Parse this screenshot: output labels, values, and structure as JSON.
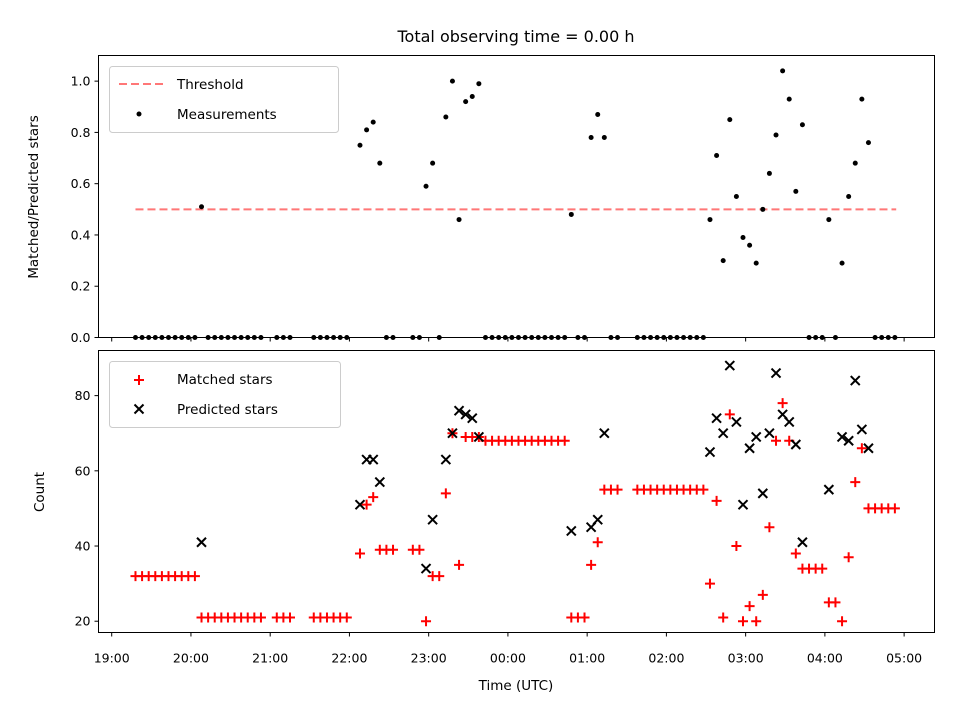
{
  "chart_data": [
    {
      "type": "scatter",
      "title": "Total observing time = 0.00 h",
      "xlabel": "",
      "ylabel": "Matched/Predicted stars",
      "ylim": [
        0,
        1.1
      ],
      "yticks": [
        "0.0",
        "0.2",
        "0.4",
        "0.6",
        "0.8",
        "1.0"
      ],
      "ytick_values": [
        0,
        0.2,
        0.4,
        0.6,
        0.8,
        1.0
      ],
      "legend_location": "upper left",
      "threshold": {
        "name": "Threshold",
        "value": 0.5,
        "x_range": [
          "19:18",
          "04:54"
        ],
        "color": "#ff7777",
        "style": "dashed"
      },
      "series": [
        {
          "name": "Measurements",
          "color": "#000000",
          "marker": "dot",
          "points": [
            [
              "19:18",
              0
            ],
            [
              "19:23",
              0
            ],
            [
              "19:28",
              0
            ],
            [
              "19:33",
              0
            ],
            [
              "19:38",
              0
            ],
            [
              "19:43",
              0
            ],
            [
              "19:48",
              0
            ],
            [
              "19:53",
              0
            ],
            [
              "19:58",
              0
            ],
            [
              "20:03",
              0
            ],
            [
              "20:08",
              0.51
            ],
            [
              "20:13",
              0
            ],
            [
              "20:18",
              0
            ],
            [
              "20:23",
              0
            ],
            [
              "20:28",
              0
            ],
            [
              "20:33",
              0
            ],
            [
              "20:38",
              0
            ],
            [
              "20:43",
              0
            ],
            [
              "20:48",
              0
            ],
            [
              "20:53",
              0
            ],
            [
              "21:05",
              0
            ],
            [
              "21:10",
              0
            ],
            [
              "21:15",
              0
            ],
            [
              "21:33",
              0
            ],
            [
              "21:38",
              0
            ],
            [
              "21:43",
              0
            ],
            [
              "21:48",
              0
            ],
            [
              "21:53",
              0
            ],
            [
              "21:58",
              0
            ],
            [
              "22:08",
              0.75
            ],
            [
              "22:13",
              0.81
            ],
            [
              "22:18",
              0.84
            ],
            [
              "22:23",
              0.68
            ],
            [
              "22:28",
              0
            ],
            [
              "22:33",
              0
            ],
            [
              "22:48",
              0
            ],
            [
              "22:53",
              0
            ],
            [
              "22:58",
              0.59
            ],
            [
              "23:03",
              0.68
            ],
            [
              "23:08",
              0
            ],
            [
              "23:13",
              0.86
            ],
            [
              "23:18",
              1.0
            ],
            [
              "23:23",
              0.46
            ],
            [
              "23:28",
              0.92
            ],
            [
              "23:33",
              0.94
            ],
            [
              "23:38",
              0.99
            ],
            [
              "23:43",
              0
            ],
            [
              "23:48",
              0
            ],
            [
              "23:53",
              0
            ],
            [
              "23:58",
              0
            ],
            [
              "00:03",
              0
            ],
            [
              "00:08",
              0
            ],
            [
              "00:13",
              0
            ],
            [
              "00:18",
              0
            ],
            [
              "00:23",
              0
            ],
            [
              "00:28",
              0
            ],
            [
              "00:33",
              0
            ],
            [
              "00:38",
              0
            ],
            [
              "00:43",
              0
            ],
            [
              "00:48",
              0.48
            ],
            [
              "00:53",
              0
            ],
            [
              "00:58",
              0
            ],
            [
              "01:03",
              0.78
            ],
            [
              "01:08",
              0.87
            ],
            [
              "01:13",
              0.78
            ],
            [
              "01:18",
              0
            ],
            [
              "01:23",
              0
            ],
            [
              "01:38",
              0
            ],
            [
              "01:43",
              0
            ],
            [
              "01:48",
              0
            ],
            [
              "01:53",
              0
            ],
            [
              "01:58",
              0
            ],
            [
              "02:03",
              0
            ],
            [
              "02:08",
              0
            ],
            [
              "02:13",
              0
            ],
            [
              "02:18",
              0
            ],
            [
              "02:23",
              0
            ],
            [
              "02:28",
              0
            ],
            [
              "02:33",
              0.46
            ],
            [
              "02:38",
              0.71
            ],
            [
              "02:43",
              0.3
            ],
            [
              "02:48",
              0.85
            ],
            [
              "02:53",
              0.55
            ],
            [
              "02:58",
              0.39
            ],
            [
              "03:03",
              0.36
            ],
            [
              "03:08",
              0.29
            ],
            [
              "03:13",
              0.5
            ],
            [
              "03:18",
              0.64
            ],
            [
              "03:23",
              0.79
            ],
            [
              "03:28",
              1.04
            ],
            [
              "03:33",
              0.93
            ],
            [
              "03:38",
              0.57
            ],
            [
              "03:43",
              0.83
            ],
            [
              "03:48",
              0
            ],
            [
              "03:53",
              0
            ],
            [
              "03:58",
              0
            ],
            [
              "04:03",
              0.46
            ],
            [
              "04:08",
              0
            ],
            [
              "04:13",
              0.29
            ],
            [
              "04:18",
              0.55
            ],
            [
              "04:23",
              0.68
            ],
            [
              "04:28",
              0.93
            ],
            [
              "04:33",
              0.76
            ],
            [
              "04:38",
              0
            ],
            [
              "04:43",
              0
            ],
            [
              "04:48",
              0
            ],
            [
              "04:53",
              0
            ]
          ]
        }
      ]
    },
    {
      "type": "scatter",
      "title": "",
      "xlabel": "Time (UTC)",
      "ylabel": "Count",
      "ylim": [
        17,
        92
      ],
      "yticks": [
        "20",
        "40",
        "60",
        "80"
      ],
      "ytick_values": [
        20,
        40,
        60,
        80
      ],
      "xticks": [
        "19:00",
        "20:00",
        "21:00",
        "22:00",
        "23:00",
        "00:00",
        "01:00",
        "02:00",
        "03:00",
        "04:00",
        "05:00"
      ],
      "xlim": [
        "18:50",
        "05:23"
      ],
      "legend_location": "upper left",
      "series": [
        {
          "name": "Matched stars",
          "color": "#ff0000",
          "marker": "plus",
          "points": [
            [
              "19:18",
              32
            ],
            [
              "19:23",
              32
            ],
            [
              "19:28",
              32
            ],
            [
              "19:33",
              32
            ],
            [
              "19:38",
              32
            ],
            [
              "19:43",
              32
            ],
            [
              "19:48",
              32
            ],
            [
              "19:53",
              32
            ],
            [
              "19:58",
              32
            ],
            [
              "20:03",
              32
            ],
            [
              "20:08",
              21
            ],
            [
              "20:13",
              21
            ],
            [
              "20:18",
              21
            ],
            [
              "20:23",
              21
            ],
            [
              "20:28",
              21
            ],
            [
              "20:33",
              21
            ],
            [
              "20:38",
              21
            ],
            [
              "20:43",
              21
            ],
            [
              "20:48",
              21
            ],
            [
              "20:53",
              21
            ],
            [
              "21:05",
              21
            ],
            [
              "21:10",
              21
            ],
            [
              "21:15",
              21
            ],
            [
              "21:33",
              21
            ],
            [
              "21:38",
              21
            ],
            [
              "21:43",
              21
            ],
            [
              "21:48",
              21
            ],
            [
              "21:53",
              21
            ],
            [
              "21:58",
              21
            ],
            [
              "22:08",
              38
            ],
            [
              "22:13",
              51
            ],
            [
              "22:18",
              53
            ],
            [
              "22:23",
              39
            ],
            [
              "22:28",
              39
            ],
            [
              "22:33",
              39
            ],
            [
              "22:48",
              39
            ],
            [
              "22:53",
              39
            ],
            [
              "22:58",
              20
            ],
            [
              "23:03",
              32
            ],
            [
              "23:08",
              32
            ],
            [
              "23:13",
              54
            ],
            [
              "23:18",
              70
            ],
            [
              "23:23",
              35
            ],
            [
              "23:28",
              69
            ],
            [
              "23:33",
              69
            ],
            [
              "23:38",
              69
            ],
            [
              "23:43",
              68
            ],
            [
              "23:48",
              68
            ],
            [
              "23:53",
              68
            ],
            [
              "23:58",
              68
            ],
            [
              "00:03",
              68
            ],
            [
              "00:08",
              68
            ],
            [
              "00:13",
              68
            ],
            [
              "00:18",
              68
            ],
            [
              "00:23",
              68
            ],
            [
              "00:28",
              68
            ],
            [
              "00:33",
              68
            ],
            [
              "00:38",
              68
            ],
            [
              "00:43",
              68
            ],
            [
              "00:48",
              21
            ],
            [
              "00:53",
              21
            ],
            [
              "00:58",
              21
            ],
            [
              "01:03",
              35
            ],
            [
              "01:08",
              41
            ],
            [
              "01:13",
              55
            ],
            [
              "01:18",
              55
            ],
            [
              "01:23",
              55
            ],
            [
              "01:38",
              55
            ],
            [
              "01:43",
              55
            ],
            [
              "01:48",
              55
            ],
            [
              "01:53",
              55
            ],
            [
              "01:58",
              55
            ],
            [
              "02:03",
              55
            ],
            [
              "02:08",
              55
            ],
            [
              "02:13",
              55
            ],
            [
              "02:18",
              55
            ],
            [
              "02:23",
              55
            ],
            [
              "02:28",
              55
            ],
            [
              "02:33",
              30
            ],
            [
              "02:38",
              52
            ],
            [
              "02:43",
              21
            ],
            [
              "02:48",
              75
            ],
            [
              "02:53",
              40
            ],
            [
              "02:58",
              20
            ],
            [
              "03:03",
              24
            ],
            [
              "03:08",
              20
            ],
            [
              "03:13",
              27
            ],
            [
              "03:18",
              45
            ],
            [
              "03:23",
              68
            ],
            [
              "03:28",
              78
            ],
            [
              "03:33",
              68
            ],
            [
              "03:38",
              38
            ],
            [
              "03:43",
              34
            ],
            [
              "03:48",
              34
            ],
            [
              "03:53",
              34
            ],
            [
              "03:58",
              34
            ],
            [
              "04:03",
              25
            ],
            [
              "04:08",
              25
            ],
            [
              "04:13",
              20
            ],
            [
              "04:18",
              37
            ],
            [
              "04:23",
              57
            ],
            [
              "04:28",
              66
            ],
            [
              "04:33",
              50
            ],
            [
              "04:38",
              50
            ],
            [
              "04:43",
              50
            ],
            [
              "04:48",
              50
            ],
            [
              "04:53",
              50
            ]
          ]
        },
        {
          "name": "Predicted stars",
          "color": "#000000",
          "marker": "x",
          "points": [
            [
              "20:08",
              41
            ],
            [
              "22:08",
              51
            ],
            [
              "22:13",
              63
            ],
            [
              "22:18",
              63
            ],
            [
              "22:23",
              57
            ],
            [
              "22:58",
              34
            ],
            [
              "23:03",
              47
            ],
            [
              "23:13",
              63
            ],
            [
              "23:18",
              70
            ],
            [
              "23:23",
              76
            ],
            [
              "23:28",
              75
            ],
            [
              "23:33",
              74
            ],
            [
              "23:38",
              69
            ],
            [
              "00:48",
              44
            ],
            [
              "01:03",
              45
            ],
            [
              "01:08",
              47
            ],
            [
              "01:13",
              70
            ],
            [
              "02:33",
              65
            ],
            [
              "02:38",
              74
            ],
            [
              "02:43",
              70
            ],
            [
              "02:48",
              88
            ],
            [
              "02:53",
              73
            ],
            [
              "02:58",
              51
            ],
            [
              "03:03",
              66
            ],
            [
              "03:08",
              69
            ],
            [
              "03:13",
              54
            ],
            [
              "03:18",
              70
            ],
            [
              "03:23",
              86
            ],
            [
              "03:28",
              75
            ],
            [
              "03:33",
              73
            ],
            [
              "03:38",
              67
            ],
            [
              "03:43",
              41
            ],
            [
              "04:03",
              55
            ],
            [
              "04:13",
              69
            ],
            [
              "04:18",
              68
            ],
            [
              "04:23",
              84
            ],
            [
              "04:28",
              71
            ],
            [
              "04:33",
              66
            ]
          ]
        }
      ]
    }
  ]
}
